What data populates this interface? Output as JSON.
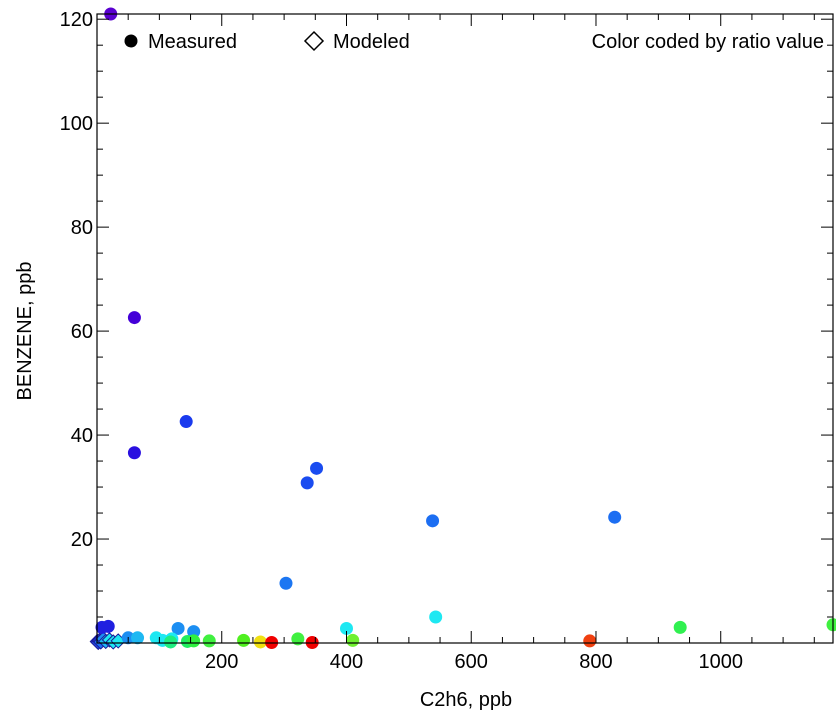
{
  "chart_data": {
    "type": "scatter",
    "xlabel": "C2h6, ppb",
    "ylabel": "BENZENE, ppb",
    "xlim": [
      0,
      1180
    ],
    "ylim": [
      0,
      121
    ],
    "x_ticks": [
      200,
      400,
      600,
      800,
      1000
    ],
    "y_ticks": [
      20,
      40,
      60,
      80,
      100,
      120
    ],
    "grid": false,
    "legend": {
      "placement": "top",
      "measured_label": "Measured",
      "modeled_label": "Modeled",
      "note": "Color coded by ratio value"
    },
    "measured": [
      {
        "x": 22,
        "y": 121,
        "color": "#5a00d0"
      },
      {
        "x": 60,
        "y": 62.6,
        "color": "#4400d8"
      },
      {
        "x": 60,
        "y": 36.6,
        "color": "#2a10e0"
      },
      {
        "x": 143,
        "y": 42.6,
        "color": "#1a3aee"
      },
      {
        "x": 352,
        "y": 33.6,
        "color": "#1a4cf0"
      },
      {
        "x": 337,
        "y": 30.8,
        "color": "#1a4cf0"
      },
      {
        "x": 538,
        "y": 23.5,
        "color": "#1c6ef2"
      },
      {
        "x": 830,
        "y": 24.2,
        "color": "#1c6ef2"
      },
      {
        "x": 303,
        "y": 11.5,
        "color": "#1c76f2"
      },
      {
        "x": 543,
        "y": 5.0,
        "color": "#1ee8f2"
      },
      {
        "x": 400,
        "y": 2.8,
        "color": "#1ee8f2"
      },
      {
        "x": 130,
        "y": 2.8,
        "color": "#1c8ef2"
      },
      {
        "x": 155,
        "y": 2.2,
        "color": "#1c8ef2"
      },
      {
        "x": 8,
        "y": 3.0,
        "color": "#2020e0"
      },
      {
        "x": 18,
        "y": 3.2,
        "color": "#2020e0"
      },
      {
        "x": 50,
        "y": 1.0,
        "color": "#1c8ef2"
      },
      {
        "x": 65,
        "y": 1.0,
        "color": "#1eb8f2"
      },
      {
        "x": 95,
        "y": 1.0,
        "color": "#1ee8f2"
      },
      {
        "x": 105,
        "y": 0.5,
        "color": "#1ee8f2"
      },
      {
        "x": 120,
        "y": 0.8,
        "color": "#1ee8f2"
      },
      {
        "x": 118,
        "y": 0.2,
        "color": "#1eee80"
      },
      {
        "x": 145,
        "y": 0.3,
        "color": "#1eee60"
      },
      {
        "x": 155,
        "y": 0.4,
        "color": "#30f040"
      },
      {
        "x": 180,
        "y": 0.4,
        "color": "#40f040"
      },
      {
        "x": 235,
        "y": 0.5,
        "color": "#50f020"
      },
      {
        "x": 262,
        "y": 0.2,
        "color": "#f0e010"
      },
      {
        "x": 280,
        "y": 0.1,
        "color": "#f00000"
      },
      {
        "x": 322,
        "y": 0.8,
        "color": "#40f040"
      },
      {
        "x": 345,
        "y": 0.1,
        "color": "#f00000"
      },
      {
        "x": 410,
        "y": 0.5,
        "color": "#70f030"
      },
      {
        "x": 790,
        "y": 0.4,
        "color": "#f04010"
      },
      {
        "x": 935,
        "y": 3.0,
        "color": "#30f050"
      },
      {
        "x": 1180,
        "y": 3.5,
        "color": "#40f040"
      }
    ],
    "modeled": [
      {
        "x": 0.5,
        "y": 0.3,
        "color": "#2233cc"
      },
      {
        "x": 2,
        "y": 0.1,
        "color": "#2244dd"
      },
      {
        "x": 4,
        "y": 0.5,
        "color": "#2233cc"
      },
      {
        "x": 6,
        "y": 0.2,
        "color": "#1c6ef2"
      },
      {
        "x": 10,
        "y": 0.8,
        "color": "#1c8ef2"
      },
      {
        "x": 14,
        "y": 0.3,
        "color": "#1eb8f2"
      },
      {
        "x": 20,
        "y": 0.6,
        "color": "#1ee8f2"
      },
      {
        "x": 26,
        "y": 0.2,
        "color": "#1ee8f2"
      },
      {
        "x": 34,
        "y": 0.4,
        "color": "#1ee8f2"
      }
    ]
  }
}
